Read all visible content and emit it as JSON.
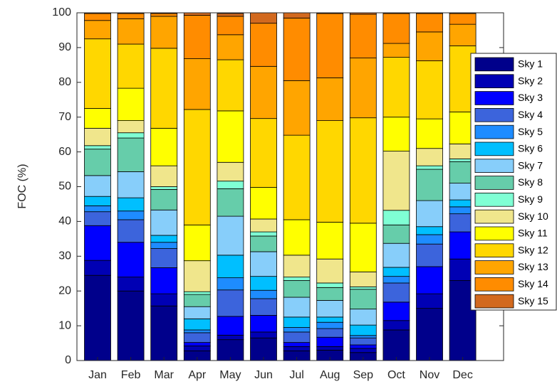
{
  "chart_data": {
    "type": "stacked_bar",
    "ylabel": "FOC (%)",
    "categories": [
      "Jan",
      "Feb",
      "Mar",
      "Apr",
      "May",
      "Jun",
      "Jul",
      "Aug",
      "Sep",
      "Oct",
      "Nov",
      "Dec"
    ],
    "ylim": [
      0,
      100
    ],
    "yticks": [
      0,
      10,
      20,
      30,
      40,
      50,
      60,
      70,
      80,
      90,
      100
    ],
    "legend": "right",
    "series": [
      {
        "name": "Sky 1",
        "color": "#00008b",
        "values": [
          24.5,
          20,
          15.7,
          2.8,
          6,
          6.5,
          2.8,
          3,
          2.3,
          8.8,
          15,
          23
        ]
      },
      {
        "name": "Sky 2",
        "color": "#0000b4",
        "values": [
          4.3,
          4,
          3.5,
          1.4,
          1.3,
          1.7,
          1.2,
          1,
          1.2,
          2.7,
          4.2,
          6.2
        ]
      },
      {
        "name": "Sky 3",
        "color": "#0000ff",
        "values": [
          10,
          10,
          7.5,
          1,
          5.4,
          4.8,
          1.2,
          2.7,
          1,
          5.3,
          7.8,
          7.8
        ]
      },
      {
        "name": "Sky 4",
        "color": "#3c64dc",
        "values": [
          4,
          6.5,
          5.5,
          2.8,
          7.6,
          4.8,
          3,
          2.5,
          2,
          5.5,
          6.5,
          5.2
        ]
      },
      {
        "name": "Sky 5",
        "color": "#1e8cff",
        "values": [
          1.7,
          2.5,
          1.8,
          0.8,
          3.5,
          2.4,
          1.3,
          1.8,
          0.7,
          1.9,
          2.7,
          2
        ]
      },
      {
        "name": "Sky 6",
        "color": "#00bfff",
        "values": [
          2.7,
          3.8,
          2,
          3.2,
          6.5,
          4,
          3,
          1.5,
          3,
          2.6,
          2.3,
          2
        ]
      },
      {
        "name": "Sky 7",
        "color": "#87cefa",
        "values": [
          6,
          7.5,
          7.3,
          3.5,
          11.2,
          7.1,
          5.7,
          4.8,
          4.6,
          6.9,
          7.5,
          4.8
        ]
      },
      {
        "name": "Sky 8",
        "color": "#66cdaa",
        "values": [
          7.6,
          9.7,
          5.9,
          3.5,
          7.9,
          4.5,
          4.8,
          3.7,
          5.7,
          5.3,
          9,
          6.2
        ]
      },
      {
        "name": "Sky 9",
        "color": "#7fffd4",
        "values": [
          1,
          1.5,
          0.8,
          0.8,
          2.2,
          1.2,
          1,
          1.3,
          0.7,
          4.2,
          1,
          0.8
        ]
      },
      {
        "name": "Sky 10",
        "color": "#f0e68c",
        "values": [
          5,
          3.5,
          6,
          8.9,
          5.4,
          3.7,
          6.3,
          6.9,
          4.3,
          17,
          5,
          4.3
        ]
      },
      {
        "name": "Sky 11",
        "color": "#ffff00",
        "values": [
          5.7,
          9.3,
          10.8,
          10.3,
          14.8,
          9.1,
          10.2,
          10.6,
          14,
          9.8,
          8.5,
          9.2
        ]
      },
      {
        "name": "Sky 12",
        "color": "#ffd700",
        "values": [
          20,
          12.7,
          23,
          33.2,
          14.7,
          19.8,
          24.3,
          29.2,
          30.3,
          17.2,
          16.7,
          19
        ]
      },
      {
        "name": "Sky 13",
        "color": "#ffa500",
        "values": [
          5.3,
          7.3,
          9.2,
          14.6,
          7.2,
          15,
          15.7,
          12.3,
          17.2,
          4,
          8.3,
          6.2
        ]
      },
      {
        "name": "Sky 14",
        "color": "#ff8c00",
        "values": [
          2,
          1.5,
          0.8,
          12.5,
          5.3,
          12.4,
          18,
          18.5,
          12.6,
          8.6,
          5.3,
          3.1
        ]
      },
      {
        "name": "Sky 15",
        "color": "#d2691e",
        "values": [
          0.2,
          0.2,
          0.2,
          0.7,
          0.8,
          3,
          1.5,
          0.2,
          0.4,
          0.2,
          0.2,
          0.2
        ]
      }
    ]
  }
}
